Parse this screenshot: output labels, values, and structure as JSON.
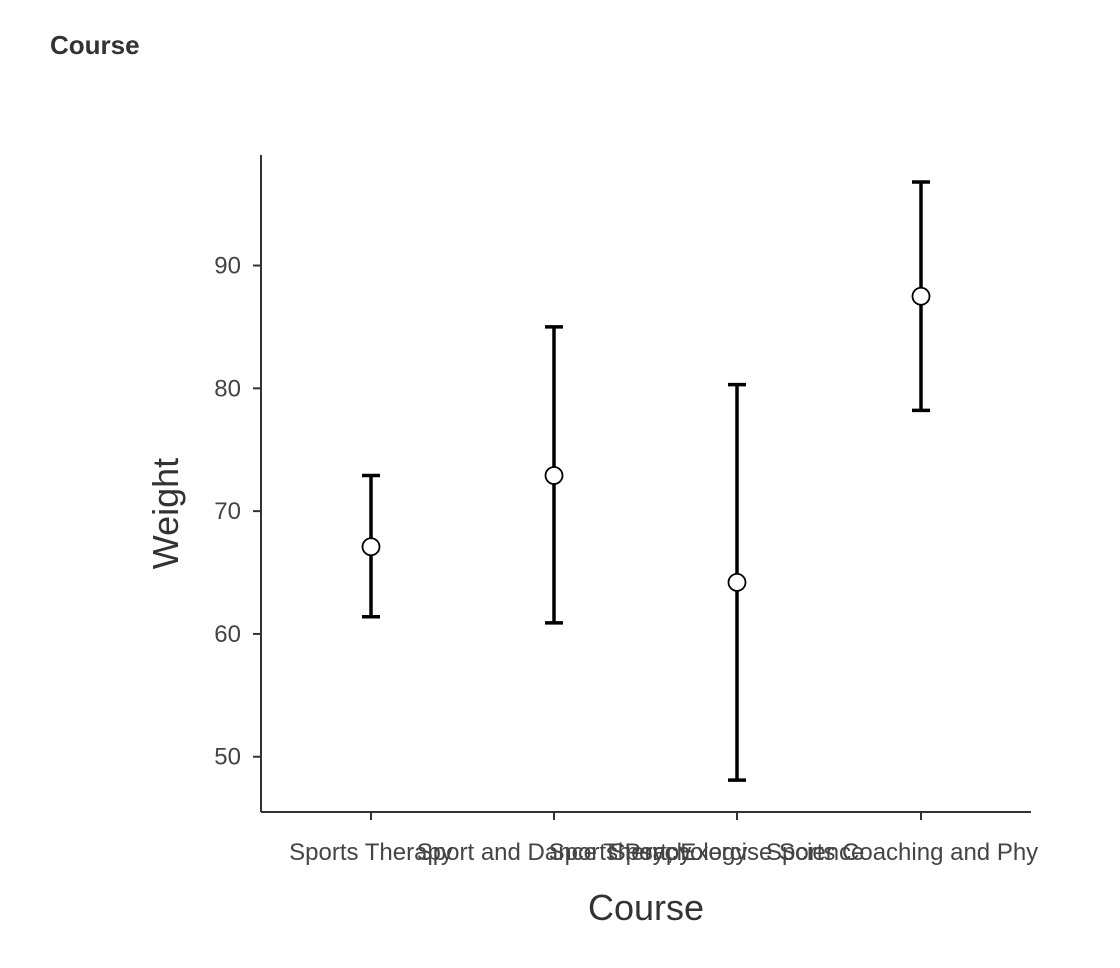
{
  "header": {
    "title": "Course"
  },
  "chart_data": {
    "type": "errorbar",
    "xlabel": "Course",
    "ylabel": "Weight",
    "ylim": [
      45.5,
      99
    ],
    "yticks": [
      50,
      60,
      70,
      80,
      90
    ],
    "categories": [
      "Sports Therapy",
      "Sport and Dance Therapy",
      "Sports Psychology",
      "Sport, Exercise Science",
      "Sports Coaching and Phy"
    ],
    "points": [
      {
        "x": "Sports Therapy",
        "mean": 67.1,
        "lower": 61.4,
        "upper": 72.9
      },
      {
        "x": "Sport and Dance Therapy",
        "mean": 72.9,
        "lower": 60.9,
        "upper": 85.0
      },
      {
        "x": "Sport, Exercise Science",
        "mean": 64.2,
        "lower": 48.1,
        "upper": 80.3
      },
      {
        "x": "Sports Coaching and Phy",
        "mean": 87.5,
        "lower": 78.2,
        "upper": 96.8
      }
    ],
    "grid": false,
    "colors": {
      "axis": "#333333",
      "errorbar": "#000000",
      "point_fill": "#ffffff",
      "point_stroke": "#000000",
      "tick_text": "#444444"
    }
  }
}
